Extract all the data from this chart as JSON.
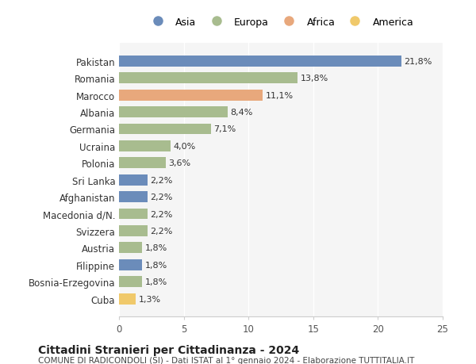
{
  "countries": [
    "Pakistan",
    "Romania",
    "Marocco",
    "Albania",
    "Germania",
    "Ucraina",
    "Polonia",
    "Sri Lanka",
    "Afghanistan",
    "Macedonia d/N.",
    "Svizzera",
    "Austria",
    "Filippine",
    "Bosnia-Erzegovina",
    "Cuba"
  ],
  "values": [
    21.8,
    13.8,
    11.1,
    8.4,
    7.1,
    4.0,
    3.6,
    2.2,
    2.2,
    2.2,
    2.2,
    1.8,
    1.8,
    1.8,
    1.3
  ],
  "labels": [
    "21,8%",
    "13,8%",
    "11,1%",
    "8,4%",
    "7,1%",
    "4,0%",
    "3,6%",
    "2,2%",
    "2,2%",
    "2,2%",
    "2,2%",
    "1,8%",
    "1,8%",
    "1,8%",
    "1,3%"
  ],
  "continents": [
    "Asia",
    "Europa",
    "Africa",
    "Europa",
    "Europa",
    "Europa",
    "Europa",
    "Asia",
    "Asia",
    "Europa",
    "Europa",
    "Europa",
    "Asia",
    "Europa",
    "America"
  ],
  "colors": {
    "Asia": "#6b8cba",
    "Europa": "#a8bc8f",
    "Africa": "#e8a87c",
    "America": "#f0c96b"
  },
  "legend_order": [
    "Asia",
    "Europa",
    "Africa",
    "America"
  ],
  "title": "Cittadini Stranieri per Cittadinanza - 2024",
  "subtitle": "COMUNE DI RADICONDOLI (SI) - Dati ISTAT al 1° gennaio 2024 - Elaborazione TUTTITALIA.IT",
  "xlim": [
    0,
    25
  ],
  "xticks": [
    0,
    5,
    10,
    15,
    20,
    25
  ],
  "background_color": "#ffffff",
  "bar_background": "#f5f5f5"
}
